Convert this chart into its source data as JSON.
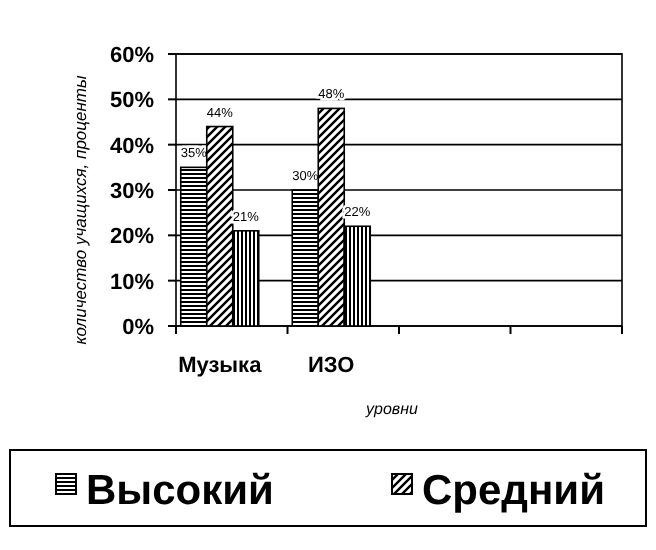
{
  "chart_data": {
    "type": "bar",
    "categories": [
      "Музыка",
      "ИЗО",
      null,
      null
    ],
    "series": [
      {
        "name": "Высокий",
        "color": "#000000",
        "values": [
          35,
          30,
          null,
          null
        ],
        "value_labels": [
          "35%",
          "30%",
          null,
          null
        ]
      },
      {
        "name": "Средний",
        "color": "#000000",
        "values": [
          44,
          48,
          null,
          null
        ],
        "value_labels": [
          "44%",
          "48%",
          null,
          null
        ]
      },
      {
        "color": "#000000",
        "values": [
          21,
          22,
          null,
          null
        ],
        "value_labels": [
          "21%",
          "22%",
          null,
          null
        ]
      }
    ],
    "ylabel": "количество учащихся, проценты",
    "xlabel": "уровни",
    "ylim": [
      0,
      60
    ],
    "yticks": [
      {
        "value": 0,
        "label": "0%"
      },
      {
        "value": 10,
        "label": "10%"
      },
      {
        "value": 20,
        "label": "20%"
      },
      {
        "value": 30,
        "label": "30%"
      },
      {
        "value": 40,
        "label": "40%"
      },
      {
        "value": 50,
        "label": "50%"
      },
      {
        "value": 60,
        "label": "60%"
      }
    ],
    "grid": "y",
    "legend": "bottom"
  }
}
